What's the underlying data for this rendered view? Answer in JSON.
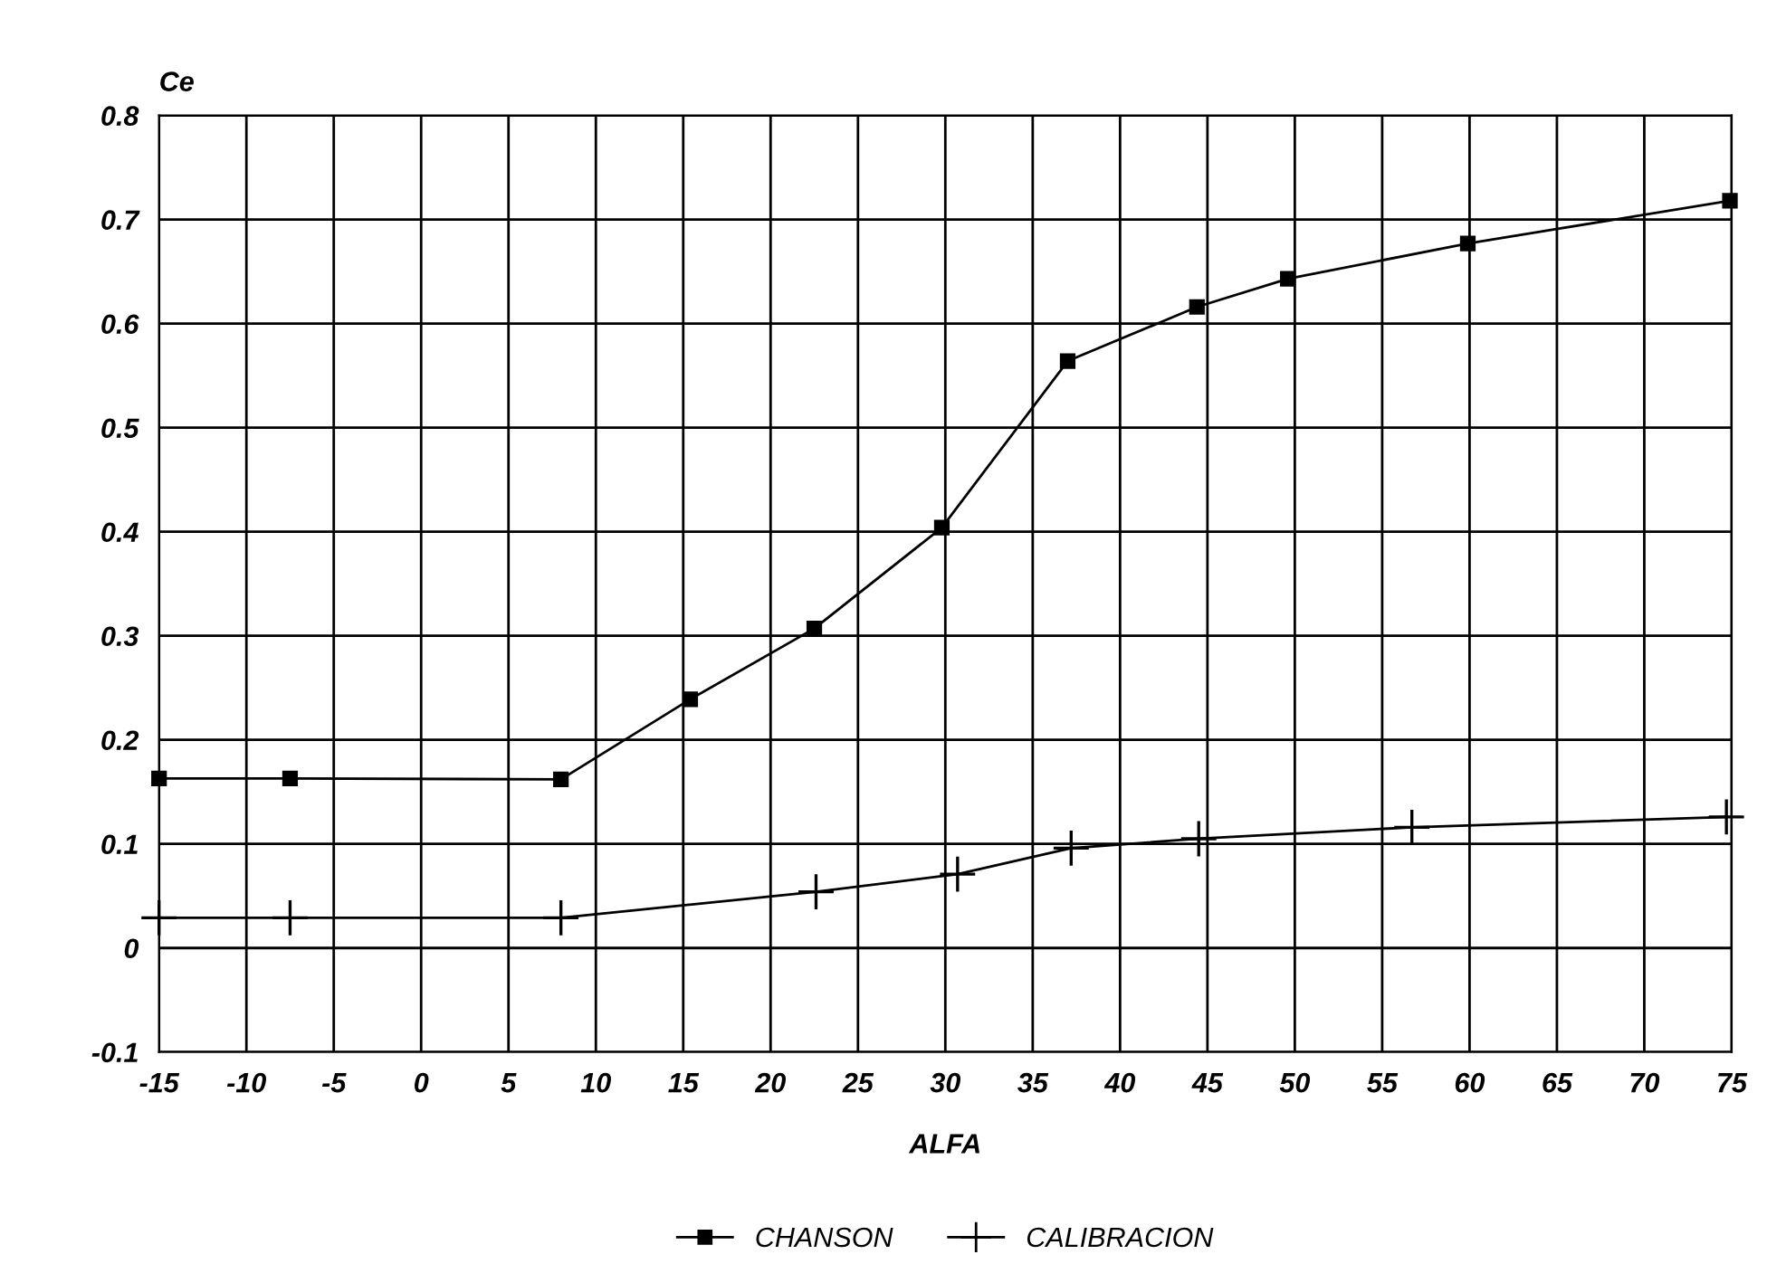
{
  "chart_data": {
    "type": "line",
    "xlabel": "ALFA",
    "ylabel": "Ce",
    "xlim": [
      -15,
      75
    ],
    "xticks": [
      -15,
      -10,
      -5,
      0,
      5,
      10,
      15,
      20,
      25,
      30,
      35,
      40,
      45,
      50,
      55,
      60,
      65,
      70,
      75
    ],
    "ylim": [
      -0.1,
      0.8
    ],
    "yticks": [
      -0.1,
      0,
      0.1,
      0.2,
      0.3,
      0.4,
      0.5,
      0.6,
      0.7,
      0.8
    ],
    "grid": true,
    "legend": "bottom",
    "series": [
      {
        "name": "CHANSON",
        "color": "#000000",
        "marker": "square",
        "x": [
          -15,
          -7.5,
          8,
          15.4,
          22.5,
          29.8,
          37.0,
          44.4,
          49.6,
          59.9,
          74.9
        ],
        "values": [
          0.163,
          0.163,
          0.162,
          0.239,
          0.307,
          0.404,
          0.564,
          0.616,
          0.643,
          0.677,
          0.718
        ]
      },
      {
        "name": "CALIBRACION",
        "color": "#000000",
        "marker": "cross",
        "x": [
          -15,
          -7.5,
          8,
          22.6,
          30.7,
          37.2,
          44.5,
          56.7,
          74.7
        ],
        "values": [
          0.029,
          0.029,
          0.029,
          0.054,
          0.071,
          0.096,
          0.105,
          0.116,
          0.126
        ]
      }
    ]
  }
}
